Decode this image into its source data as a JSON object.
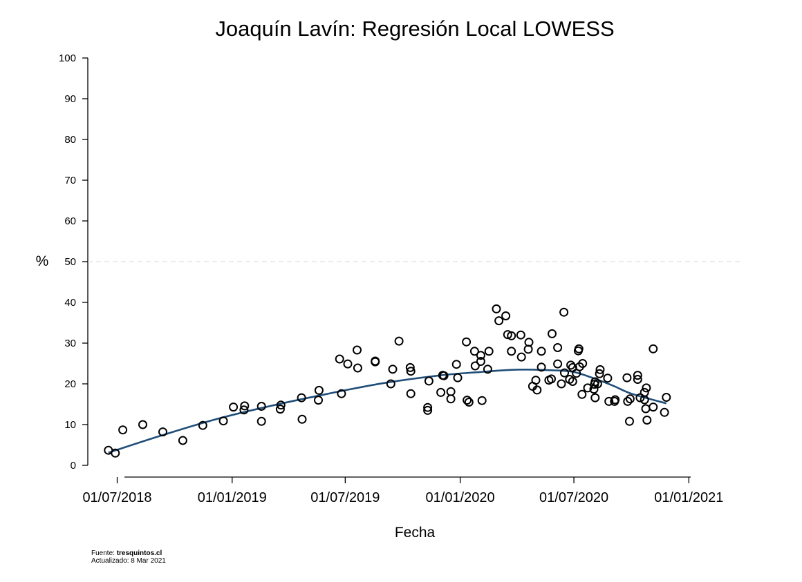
{
  "chart_data": {
    "type": "scatter",
    "title": "Joaquín Lavín: Regresión Local LOWESS",
    "xlabel": "Fecha",
    "ylabel": "%",
    "ylim": [
      0,
      100
    ],
    "yticks": [
      "0",
      "10",
      "20",
      "30",
      "40",
      "50",
      "60",
      "70",
      "80",
      "90",
      "100"
    ],
    "xlim": [
      "2018-06-05",
      "2021-03-08"
    ],
    "xticks": [
      {
        "date": "2018-07-01",
        "label": "01/07/2018"
      },
      {
        "date": "2019-01-01",
        "label": "01/01/2019"
      },
      {
        "date": "2019-07-01",
        "label": "01/07/2019"
      },
      {
        "date": "2020-01-01",
        "label": "01/01/2020"
      },
      {
        "date": "2020-07-01",
        "label": "01/07/2020"
      },
      {
        "date": "2021-01-01",
        "label": "01/01/2021"
      }
    ],
    "reference_line": {
      "y": 50,
      "style": "dashed",
      "color": "#d9d9d9"
    },
    "grid": false,
    "legend": "none",
    "colors": {
      "points": "#000000",
      "lowess": "#1f4e79",
      "reference": "#d9d9d9"
    },
    "series": [
      {
        "type": "scatter",
        "marker": "open-circle",
        "points": [
          [
            "2018-06-17",
            3.7
          ],
          [
            "2018-06-28",
            3.0
          ],
          [
            "2018-07-10",
            8.7
          ],
          [
            "2018-08-11",
            10.0
          ],
          [
            "2018-09-12",
            8.2
          ],
          [
            "2018-10-14",
            6.1
          ],
          [
            "2018-11-15",
            9.8
          ],
          [
            "2018-12-18",
            10.9
          ],
          [
            "2019-01-03",
            14.3
          ],
          [
            "2019-01-20",
            13.6
          ],
          [
            "2019-01-21",
            14.6
          ],
          [
            "2019-02-17",
            14.5
          ],
          [
            "2019-02-17",
            10.8
          ],
          [
            "2019-03-19",
            13.8
          ],
          [
            "2019-03-20",
            14.8
          ],
          [
            "2019-04-22",
            16.6
          ],
          [
            "2019-04-23",
            11.3
          ],
          [
            "2019-05-19",
            16.0
          ],
          [
            "2019-05-20",
            18.4
          ],
          [
            "2019-06-22",
            26.1
          ],
          [
            "2019-06-25",
            17.6
          ],
          [
            "2019-07-05",
            24.9
          ],
          [
            "2019-07-20",
            28.3
          ],
          [
            "2019-07-21",
            23.9
          ],
          [
            "2019-08-18",
            25.6
          ],
          [
            "2019-08-18",
            25.4
          ],
          [
            "2019-09-12",
            20.0
          ],
          [
            "2019-09-15",
            23.6
          ],
          [
            "2019-09-25",
            30.5
          ],
          [
            "2019-10-13",
            24.0
          ],
          [
            "2019-10-14",
            23.1
          ],
          [
            "2019-10-14",
            17.6
          ],
          [
            "2019-11-10",
            13.5
          ],
          [
            "2019-11-10",
            14.2
          ],
          [
            "2019-11-12",
            20.7
          ],
          [
            "2019-12-01",
            17.9
          ],
          [
            "2019-12-04",
            22.1
          ],
          [
            "2019-12-06",
            22.0
          ],
          [
            "2019-12-17",
            18.1
          ],
          [
            "2019-12-17",
            16.3
          ],
          [
            "2019-12-26",
            24.8
          ],
          [
            "2019-12-28",
            21.5
          ],
          [
            "2020-01-11",
            30.3
          ],
          [
            "2020-01-12",
            16.0
          ],
          [
            "2020-01-15",
            15.5
          ],
          [
            "2020-01-24",
            28.0
          ],
          [
            "2020-01-25",
            24.4
          ],
          [
            "2020-02-03",
            25.5
          ],
          [
            "2020-02-03",
            27.0
          ],
          [
            "2020-02-05",
            15.9
          ],
          [
            "2020-02-14",
            23.6
          ],
          [
            "2020-02-16",
            28.0
          ],
          [
            "2020-02-28",
            38.4
          ],
          [
            "2020-03-03",
            35.5
          ],
          [
            "2020-03-14",
            36.7
          ],
          [
            "2020-03-17",
            32.1
          ],
          [
            "2020-03-23",
            31.8
          ],
          [
            "2020-03-23",
            28.0
          ],
          [
            "2020-04-07",
            32.0
          ],
          [
            "2020-04-08",
            26.6
          ],
          [
            "2020-04-19",
            28.5
          ],
          [
            "2020-04-20",
            30.2
          ],
          [
            "2020-04-26",
            19.4
          ],
          [
            "2020-05-01",
            20.9
          ],
          [
            "2020-05-03",
            18.5
          ],
          [
            "2020-05-10",
            24.1
          ],
          [
            "2020-05-10",
            28.0
          ],
          [
            "2020-05-22",
            20.9
          ],
          [
            "2020-05-26",
            21.2
          ],
          [
            "2020-05-27",
            32.3
          ],
          [
            "2020-06-05",
            28.9
          ],
          [
            "2020-06-05",
            24.9
          ],
          [
            "2020-06-11",
            20.0
          ],
          [
            "2020-06-15",
            37.6
          ],
          [
            "2020-06-16",
            22.7
          ],
          [
            "2020-06-24",
            21.1
          ],
          [
            "2020-06-26",
            24.6
          ],
          [
            "2020-06-29",
            20.6
          ],
          [
            "2020-06-29",
            24.0
          ],
          [
            "2020-07-05",
            22.6
          ],
          [
            "2020-07-08",
            28.1
          ],
          [
            "2020-07-09",
            28.6
          ],
          [
            "2020-07-10",
            24.2
          ],
          [
            "2020-07-14",
            17.4
          ],
          [
            "2020-07-15",
            25.0
          ],
          [
            "2020-07-23",
            19.0
          ],
          [
            "2020-08-02",
            18.7
          ],
          [
            "2020-08-03",
            19.9
          ],
          [
            "2020-08-04",
            20.5
          ],
          [
            "2020-08-04",
            16.6
          ],
          [
            "2020-08-08",
            20.0
          ],
          [
            "2020-08-11",
            22.5
          ],
          [
            "2020-08-12",
            23.5
          ],
          [
            "2020-08-24",
            21.4
          ],
          [
            "2020-08-26",
            15.7
          ],
          [
            "2020-09-04",
            15.7
          ],
          [
            "2020-09-05",
            16.1
          ],
          [
            "2020-09-24",
            21.5
          ],
          [
            "2020-09-25",
            15.7
          ],
          [
            "2020-09-28",
            10.8
          ],
          [
            "2020-09-29",
            16.3
          ],
          [
            "2020-10-11",
            22.1
          ],
          [
            "2020-10-11",
            21.1
          ],
          [
            "2020-10-15",
            16.6
          ],
          [
            "2020-10-22",
            16.1
          ],
          [
            "2020-10-22",
            17.9
          ],
          [
            "2020-10-24",
            13.9
          ],
          [
            "2020-10-25",
            19.0
          ],
          [
            "2020-10-26",
            11.1
          ],
          [
            "2020-11-05",
            14.3
          ],
          [
            "2020-11-05",
            28.6
          ],
          [
            "2020-11-23",
            13.0
          ],
          [
            "2020-11-26",
            16.7
          ]
        ]
      },
      {
        "type": "line",
        "points": [
          [
            "2018-06-17",
            3.1
          ],
          [
            "2018-09-01",
            6.9
          ],
          [
            "2018-12-01",
            11.1
          ],
          [
            "2019-03-01",
            14.5
          ],
          [
            "2019-06-01",
            17.5
          ],
          [
            "2019-09-01",
            20.2
          ],
          [
            "2019-12-01",
            22.1
          ],
          [
            "2020-02-01",
            22.9
          ],
          [
            "2020-04-01",
            23.5
          ],
          [
            "2020-06-01",
            23.3
          ],
          [
            "2020-07-01",
            22.9
          ],
          [
            "2020-08-01",
            21.4
          ],
          [
            "2020-09-01",
            19.6
          ],
          [
            "2020-10-01",
            17.6
          ],
          [
            "2020-11-26",
            15.2
          ]
        ]
      }
    ]
  },
  "footer": {
    "source_label": "Fuente:",
    "source_value": "tresquintos.cl",
    "updated": "Actualizado: 8 Mar 2021"
  }
}
